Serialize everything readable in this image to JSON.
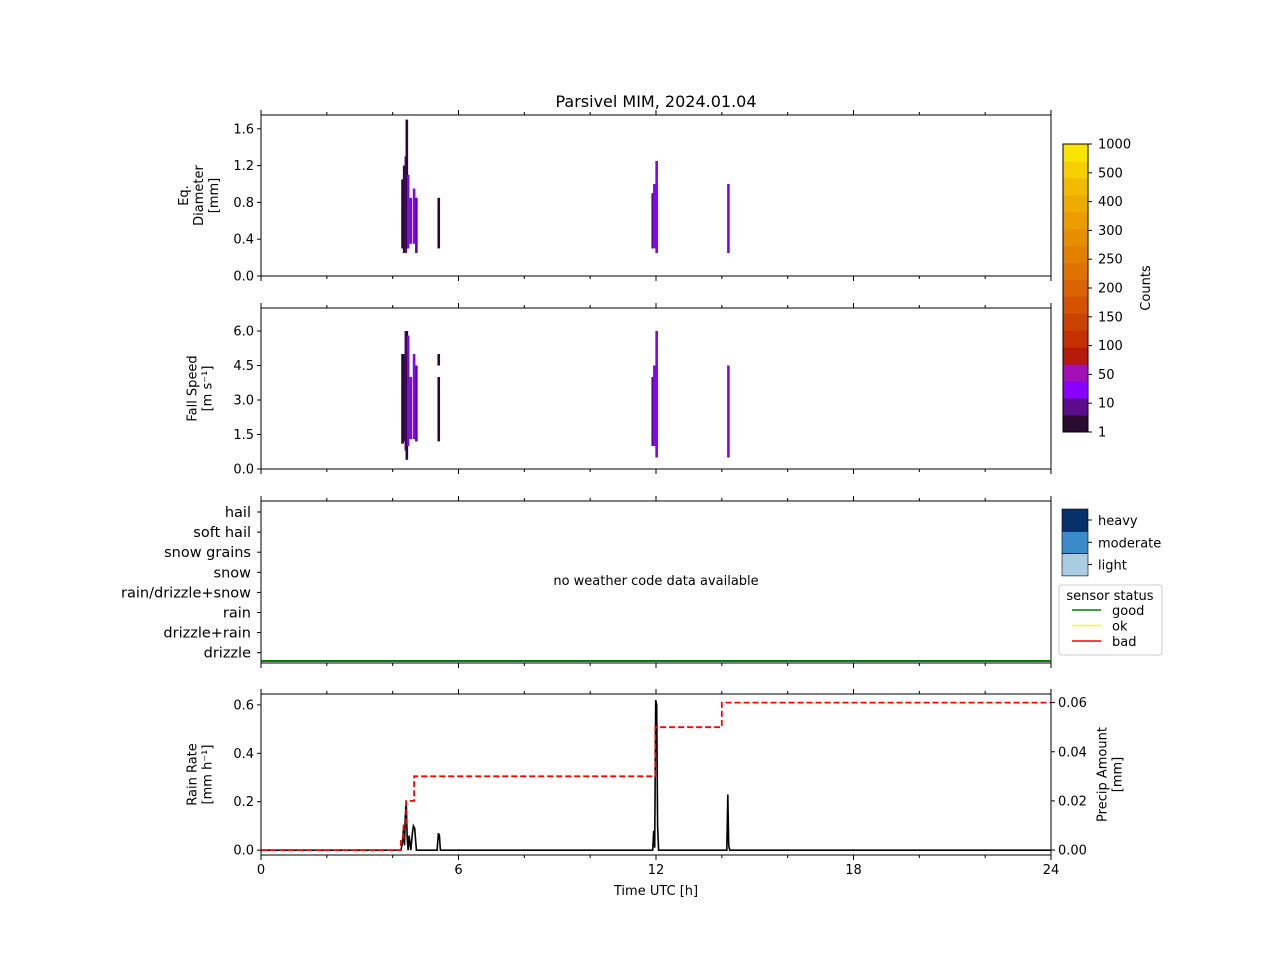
{
  "title": "Parsivel MIM, 2024.01.04",
  "chart_data": [
    {
      "type": "heatmap",
      "panel": "diameter",
      "ylabel_lines": [
        "Eq.",
        "Diameter",
        "[mm]"
      ],
      "yticks": [
        "0.0",
        "0.4",
        "0.8",
        "1.2",
        "1.6"
      ],
      "ylim": [
        0,
        1.75
      ],
      "xlim": [
        0,
        24
      ],
      "columns": [
        {
          "x": 4.3,
          "ymin": 0.3,
          "ymax": 1.05,
          "color": "#2a0a2e"
        },
        {
          "x": 4.35,
          "ymin": 0.25,
          "ymax": 1.2,
          "color": "#2a0a2e"
        },
        {
          "x": 4.4,
          "ymin": 0.25,
          "ymax": 1.3,
          "color": "#5a0c8c"
        },
        {
          "x": 4.43,
          "ymin": 0.3,
          "ymax": 1.7,
          "color": "#2a0a2e"
        },
        {
          "x": 4.47,
          "ymin": 0.3,
          "ymax": 1.1,
          "color": "#7b0bd8"
        },
        {
          "x": 4.55,
          "ymin": 0.35,
          "ymax": 0.85,
          "color": "#7b0bd8"
        },
        {
          "x": 4.65,
          "ymin": 0.35,
          "ymax": 0.95,
          "color": "#8a00ff"
        },
        {
          "x": 4.72,
          "ymin": 0.25,
          "ymax": 0.85,
          "color": "#5a0c8c"
        },
        {
          "x": 5.4,
          "ymin": 0.3,
          "ymax": 0.85,
          "color": "#2a0a2e"
        },
        {
          "x": 11.9,
          "ymin": 0.3,
          "ymax": 0.9,
          "color": "#5a0c8c"
        },
        {
          "x": 11.95,
          "ymin": 0.3,
          "ymax": 1.0,
          "color": "#8a00ff"
        },
        {
          "x": 12.02,
          "ymin": 0.25,
          "ymax": 1.25,
          "color": "#7b0bd8"
        },
        {
          "x": 14.2,
          "ymin": 0.25,
          "ymax": 1.0,
          "color": "#7b0bd8"
        }
      ]
    },
    {
      "type": "heatmap",
      "panel": "fall_speed",
      "ylabel_lines": [
        "Fall Speed",
        "[m s⁻¹]"
      ],
      "yticks": [
        "0.0",
        "1.5",
        "3.0",
        "4.5",
        "6.0"
      ],
      "ylim": [
        0,
        7
      ],
      "xlim": [
        0,
        24
      ],
      "columns": [
        {
          "x": 4.3,
          "ymin": 1.1,
          "ymax": 5.0,
          "color": "#2a0a2e"
        },
        {
          "x": 4.35,
          "ymin": 1.2,
          "ymax": 5.0,
          "color": "#2a0a2e"
        },
        {
          "x": 4.4,
          "ymin": 0.8,
          "ymax": 6.0,
          "color": "#5a0c8c"
        },
        {
          "x": 4.43,
          "ymin": 0.4,
          "ymax": 6.0,
          "color": "#2a0a2e"
        },
        {
          "x": 4.47,
          "ymin": 1.0,
          "ymax": 5.8,
          "color": "#7b0bd8"
        },
        {
          "x": 4.55,
          "ymin": 1.3,
          "ymax": 4.0,
          "color": "#7b0bd8"
        },
        {
          "x": 4.65,
          "ymin": 1.3,
          "ymax": 5.0,
          "color": "#8a00ff"
        },
        {
          "x": 4.72,
          "ymin": 1.2,
          "ymax": 4.5,
          "color": "#5a0c8c"
        },
        {
          "x": 5.4,
          "ymin": 1.2,
          "ymax": 4.0,
          "color": "#2a0a2e"
        },
        {
          "x": 5.4,
          "ymin": 4.5,
          "ymax": 5.0,
          "color": "#2a0a2e"
        },
        {
          "x": 11.9,
          "ymin": 1.0,
          "ymax": 4.0,
          "color": "#5a0c8c"
        },
        {
          "x": 11.95,
          "ymin": 1.0,
          "ymax": 4.5,
          "color": "#8a00ff"
        },
        {
          "x": 12.02,
          "ymin": 0.5,
          "ymax": 6.0,
          "color": "#7b0bd8"
        },
        {
          "x": 14.2,
          "ymin": 0.5,
          "ymax": 4.5,
          "color": "#7b0bd8"
        }
      ]
    },
    {
      "type": "line",
      "panel": "weather_code",
      "categories": [
        "hail",
        "soft hail",
        "snow grains",
        "snow",
        "rain/drizzle+snow",
        "rain",
        "drizzle+rain",
        "drizzle"
      ],
      "annotation": "no weather code data available",
      "xlim": [
        0,
        24
      ],
      "sensor_status_line": {
        "status": "good",
        "color": "#008000"
      },
      "intensity_legend": [
        {
          "label": "heavy",
          "color": "#08306b"
        },
        {
          "label": "moderate",
          "color": "#3a8bc8"
        },
        {
          "label": "light",
          "color": "#a9cce3"
        }
      ],
      "status_legend_title": "sensor status",
      "status_legend": [
        {
          "label": "good",
          "color": "#008000"
        },
        {
          "label": "ok",
          "color": "#ffff00"
        },
        {
          "label": "bad",
          "color": "#ff0000"
        }
      ]
    },
    {
      "type": "line",
      "panel": "rain_rate",
      "ylabel_lines": [
        "Rain Rate",
        "[mm h⁻¹]"
      ],
      "y2label_lines": [
        "Precip Amount",
        "[mm]"
      ],
      "xlabel": "Time UTC [h]",
      "xticks": [
        "0",
        "6",
        "12",
        "18",
        "24"
      ],
      "yticks": [
        "0.0",
        "0.2",
        "0.4",
        "0.6"
      ],
      "y2ticks": [
        "0.00",
        "0.02",
        "0.04",
        "0.06"
      ],
      "xlim": [
        0,
        24
      ],
      "ylim": [
        -0.02,
        0.645
      ],
      "y2lim": [
        -0.002,
        0.0635
      ],
      "series": [
        {
          "axis": "left",
          "color": "#000000",
          "style": "solid",
          "x": [
            0,
            4.25,
            4.3,
            4.33,
            4.36,
            4.38,
            4.41,
            4.44,
            4.47,
            4.5,
            4.55,
            4.6,
            4.63,
            4.67,
            4.72,
            4.76,
            5.35,
            5.39,
            5.42,
            5.45,
            11.9,
            11.93,
            11.96,
            11.99,
            12.02,
            12.05,
            12.08,
            14.15,
            14.18,
            14.21,
            14.24,
            24
          ],
          "y": [
            0,
            0,
            0.03,
            0.09,
            0.02,
            0.13,
            0.2,
            0.05,
            0.0,
            0.06,
            0.0,
            0.07,
            0.1,
            0.09,
            0.0,
            0.0,
            0.0,
            0.07,
            0.06,
            0.0,
            0.0,
            0.08,
            0.01,
            0.62,
            0.6,
            0.1,
            0.0,
            0.0,
            0.23,
            0.02,
            0.0,
            0
          ]
        },
        {
          "axis": "right",
          "color": "#ff0000",
          "style": "dashed",
          "x": [
            0,
            4.25,
            4.25,
            4.33,
            4.33,
            4.41,
            4.41,
            4.65,
            4.65,
            11.98,
            11.98,
            14.0,
            14.0,
            24
          ],
          "y": [
            0,
            0,
            0.005,
            0.005,
            0.01,
            0.01,
            0.02,
            0.02,
            0.03,
            0.03,
            0.05,
            0.05,
            0.06,
            0.06
          ]
        }
      ]
    }
  ],
  "colorbar": {
    "label": "Counts",
    "ticks": [
      "1",
      "10",
      "50",
      "100",
      "150",
      "200",
      "250",
      "300",
      "400",
      "500",
      "1000"
    ],
    "colors": [
      "#2a0a2e",
      "#5a0c8c",
      "#8a00ff",
      "#a10fb5",
      "#b81a0a",
      "#c43000",
      "#cc4200",
      "#d45200",
      "#da6200",
      "#df7200",
      "#e38000",
      "#e78e00",
      "#eb9c00",
      "#efab00",
      "#f3bb00",
      "#f7ce00",
      "#fbe300"
    ]
  }
}
